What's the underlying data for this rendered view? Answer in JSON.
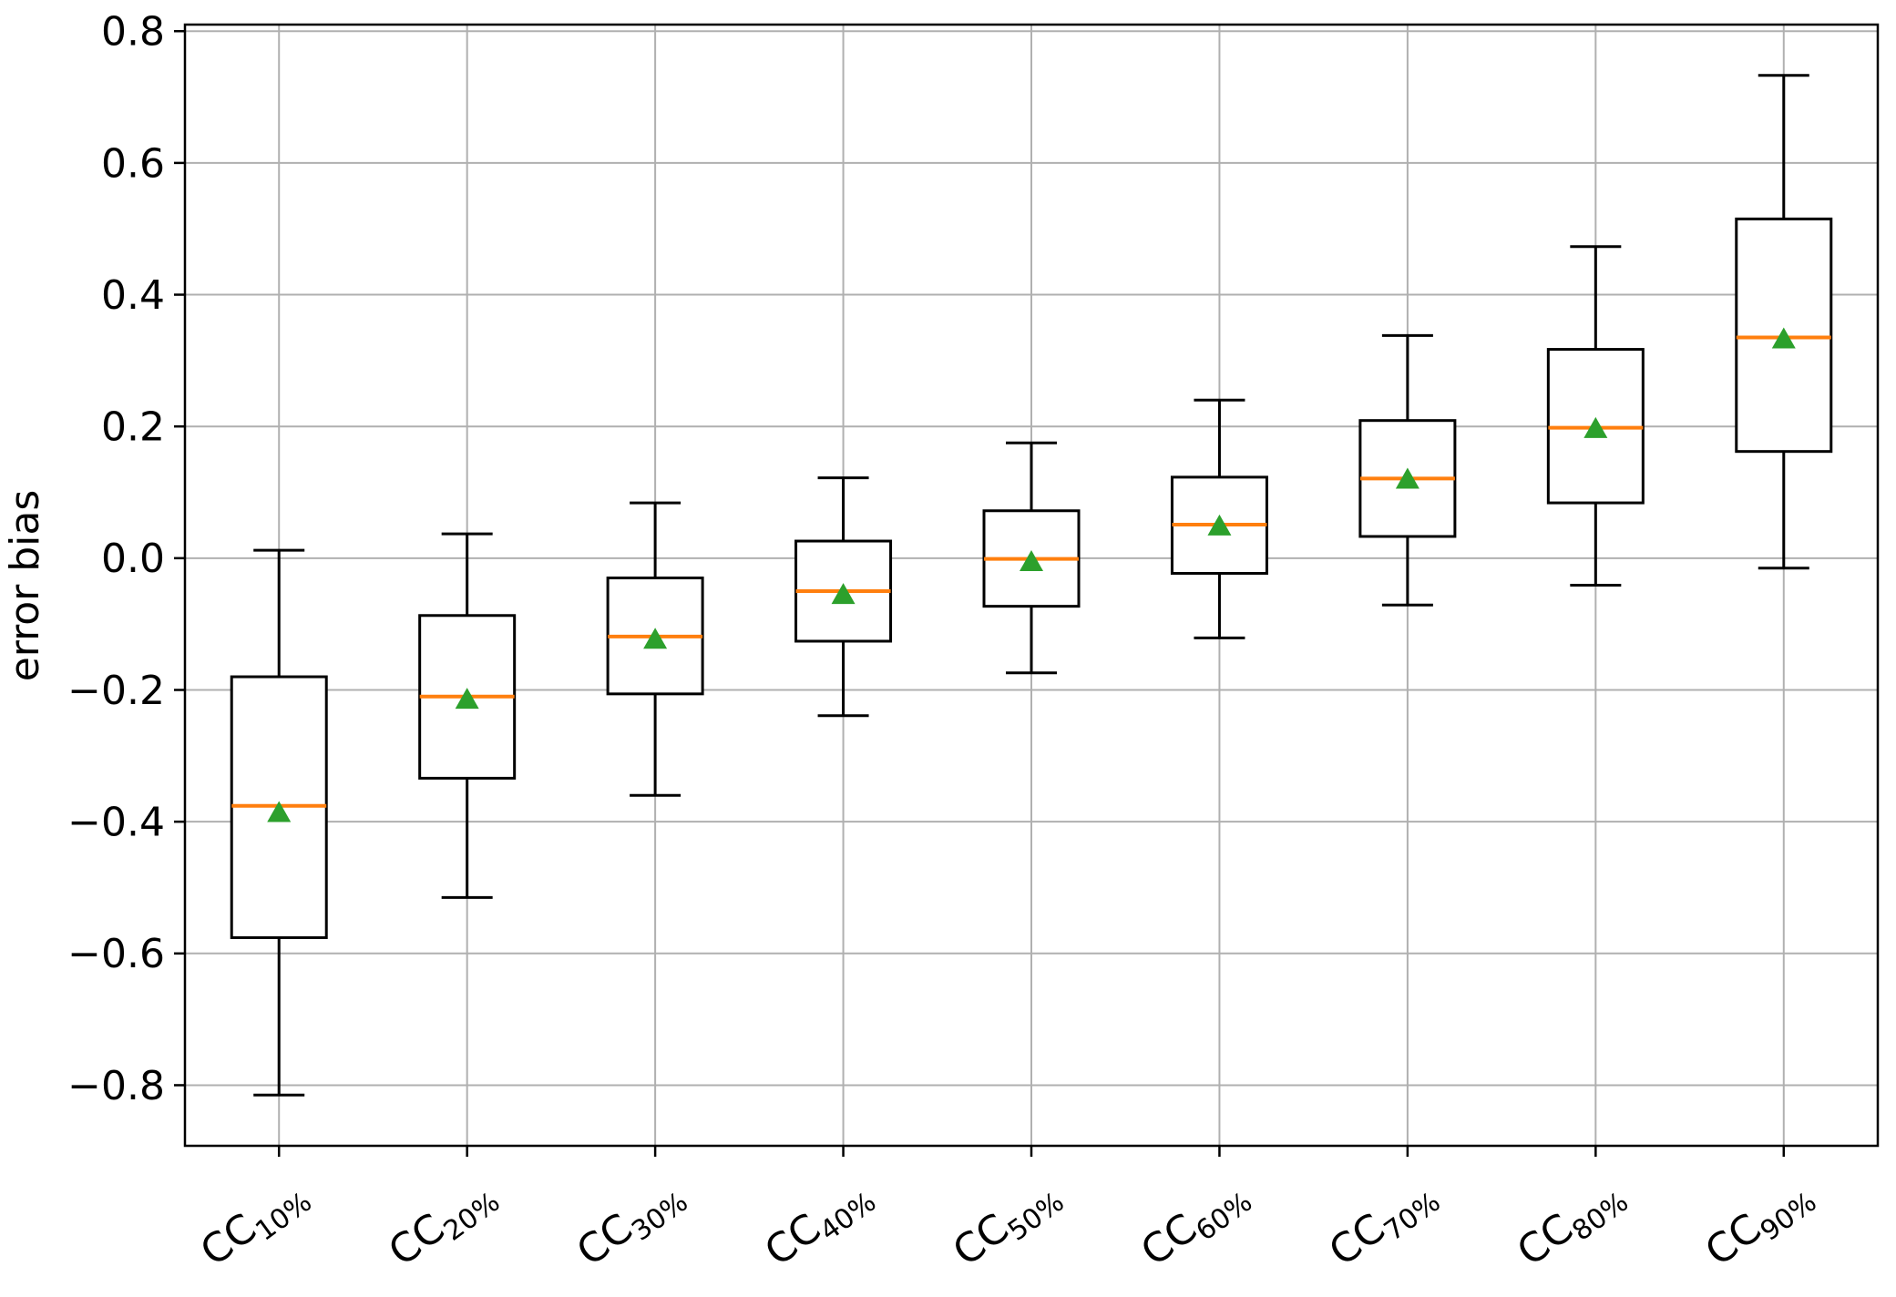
{
  "figure": {
    "background": "#ffffff"
  },
  "chart_data": {
    "type": "boxplot",
    "title": "",
    "xlabel": "",
    "ylabel": "error bias",
    "grid": true,
    "legend_position": "none",
    "ylim": [
      -0.892,
      0.81
    ],
    "yticks": {
      "values": [
        0.8,
        0.6,
        0.4,
        0.2,
        0.0,
        -0.2,
        -0.4,
        -0.6,
        -0.8
      ],
      "labels": [
        "0.8",
        "0.6",
        "0.4",
        "0.2",
        "0.0",
        "−0.2",
        "−0.4",
        "−0.6",
        "−0.8"
      ]
    },
    "categories": [
      {
        "base": "CC",
        "subscript": "10%",
        "label": "CC10%"
      },
      {
        "base": "CC",
        "subscript": "20%",
        "label": "CC20%"
      },
      {
        "base": "CC",
        "subscript": "30%",
        "label": "CC30%"
      },
      {
        "base": "CC",
        "subscript": "40%",
        "label": "CC40%"
      },
      {
        "base": "CC",
        "subscript": "50%",
        "label": "CC50%"
      },
      {
        "base": "CC",
        "subscript": "60%",
        "label": "CC60%"
      },
      {
        "base": "CC",
        "subscript": "70%",
        "label": "CC70%"
      },
      {
        "base": "CC",
        "subscript": "80%",
        "label": "CC80%"
      },
      {
        "base": "CC",
        "subscript": "90%",
        "label": "CC90%"
      }
    ],
    "boxes": [
      {
        "label": "CC10%",
        "whislo": -0.815,
        "q1": -0.576,
        "med": -0.376,
        "mean": -0.386,
        "q3": -0.18,
        "whishi": 0.012
      },
      {
        "label": "CC20%",
        "whislo": -0.515,
        "q1": -0.334,
        "med": -0.21,
        "mean": -0.214,
        "q3": -0.087,
        "whishi": 0.037
      },
      {
        "label": "CC30%",
        "whislo": -0.36,
        "q1": -0.206,
        "med": -0.119,
        "mean": -0.123,
        "q3": -0.03,
        "whishi": 0.084
      },
      {
        "label": "CC40%",
        "whislo": -0.239,
        "q1": -0.126,
        "med": -0.05,
        "mean": -0.055,
        "q3": 0.026,
        "whishi": 0.122
      },
      {
        "label": "CC50%",
        "whislo": -0.174,
        "q1": -0.073,
        "med": -0.001,
        "mean": -0.005,
        "q3": 0.072,
        "whishi": 0.175
      },
      {
        "label": "CC60%",
        "whislo": -0.121,
        "q1": -0.023,
        "med": 0.051,
        "mean": 0.049,
        "q3": 0.123,
        "whishi": 0.24
      },
      {
        "label": "CC70%",
        "whislo": -0.071,
        "q1": 0.033,
        "med": 0.121,
        "mean": 0.12,
        "q3": 0.209,
        "whishi": 0.338
      },
      {
        "label": "CC80%",
        "whislo": -0.041,
        "q1": 0.084,
        "med": 0.198,
        "mean": 0.197,
        "q3": 0.317,
        "whishi": 0.473
      },
      {
        "label": "CC90%",
        "whislo": -0.015,
        "q1": 0.162,
        "med": 0.335,
        "mean": 0.333,
        "q3": 0.515,
        "whishi": 0.733
      }
    ],
    "mean_marker_shape": "triangle-up",
    "colors": {
      "box_edge": "#000000",
      "whisker": "#000000",
      "median": "#ff7f0e",
      "mean_marker": "#2ca02c",
      "grid": "#b0b0b0",
      "spine": "#000000",
      "tick_text": "#000000"
    }
  }
}
